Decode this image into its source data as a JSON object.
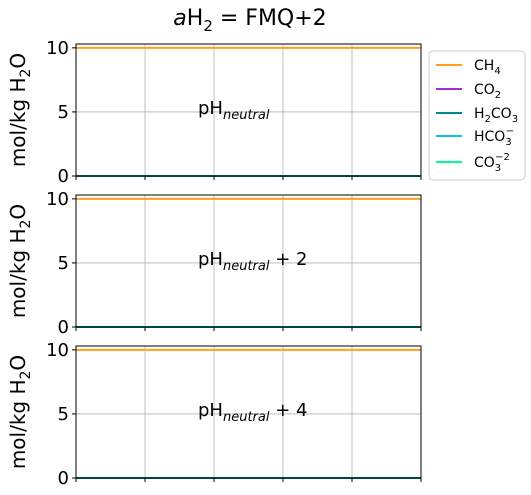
{
  "figure": {
    "title_prefix_italic": "a",
    "title_main": "H",
    "title_sub": "2",
    "title_rest": " = FMQ+2"
  },
  "legend": [
    {
      "base": "CH",
      "sub": "4",
      "sup": "",
      "color": "#ff9f1c"
    },
    {
      "base": "CO",
      "sub": "2",
      "sup": "",
      "color": "#9b30d9"
    },
    {
      "base": "H",
      "sub": "2",
      "mid": "CO",
      "sub2": "3",
      "sup": "",
      "color": "#008b8b"
    },
    {
      "base": "HCO",
      "sub": "3",
      "sup": "−",
      "color": "#00c8e0"
    },
    {
      "base": "CO",
      "sub": "3",
      "sup": "−2",
      "color": "#00ff99"
    }
  ],
  "chart_data": [
    {
      "type": "line",
      "ylabel": "mol/kg H2O",
      "annotation": {
        "base": "pH",
        "sub": "neutral",
        "tail": ""
      },
      "ylim": [
        0,
        10.3
      ],
      "yticks": [
        "0",
        "5",
        "10"
      ],
      "x": [
        0,
        1,
        2,
        3,
        4,
        5
      ],
      "grid": true,
      "series": [
        {
          "name": "CH4",
          "values": [
            10,
            10,
            10,
            10,
            10,
            10
          ]
        },
        {
          "name": "CO2",
          "values": [
            0,
            0,
            0,
            0,
            0,
            0
          ]
        },
        {
          "name": "H2CO3",
          "values": [
            0,
            0,
            0,
            0,
            0,
            0
          ]
        },
        {
          "name": "HCO3-",
          "values": [
            0,
            0,
            0,
            0,
            0,
            0
          ]
        },
        {
          "name": "CO3-2",
          "values": [
            0,
            0,
            0,
            0,
            0,
            0
          ]
        }
      ]
    },
    {
      "type": "line",
      "ylabel": "mol/kg H2O",
      "annotation": {
        "base": "pH",
        "sub": "neutral",
        "tail": " + 2"
      },
      "ylim": [
        0,
        10.3
      ],
      "yticks": [
        "0",
        "5",
        "10"
      ],
      "x": [
        0,
        1,
        2,
        3,
        4,
        5
      ],
      "grid": true,
      "series": [
        {
          "name": "CH4",
          "values": [
            10,
            10,
            10,
            10,
            10,
            10
          ]
        },
        {
          "name": "CO2",
          "values": [
            0,
            0,
            0,
            0,
            0,
            0
          ]
        },
        {
          "name": "H2CO3",
          "values": [
            0,
            0,
            0,
            0,
            0,
            0
          ]
        },
        {
          "name": "HCO3-",
          "values": [
            0,
            0,
            0,
            0,
            0,
            0
          ]
        },
        {
          "name": "CO3-2",
          "values": [
            0,
            0,
            0,
            0,
            0,
            0
          ]
        }
      ]
    },
    {
      "type": "line",
      "ylabel": "mol/kg H2O",
      "annotation": {
        "base": "pH",
        "sub": "neutral",
        "tail": " + 4"
      },
      "ylim": [
        0,
        10.3
      ],
      "yticks": [
        "0",
        "5",
        "10"
      ],
      "x": [
        0,
        1,
        2,
        3,
        4,
        5
      ],
      "grid": true,
      "series": [
        {
          "name": "CH4",
          "values": [
            10,
            10,
            10,
            10,
            10,
            10
          ]
        },
        {
          "name": "CO2",
          "values": [
            0,
            0,
            0,
            0,
            0,
            0
          ]
        },
        {
          "name": "H2CO3",
          "values": [
            0,
            0,
            0,
            0,
            0,
            0
          ]
        },
        {
          "name": "HCO3-",
          "values": [
            0,
            0,
            0,
            0,
            0,
            0
          ]
        },
        {
          "name": "CO3-2",
          "values": [
            0,
            0,
            0,
            0,
            0,
            0
          ]
        }
      ]
    }
  ]
}
